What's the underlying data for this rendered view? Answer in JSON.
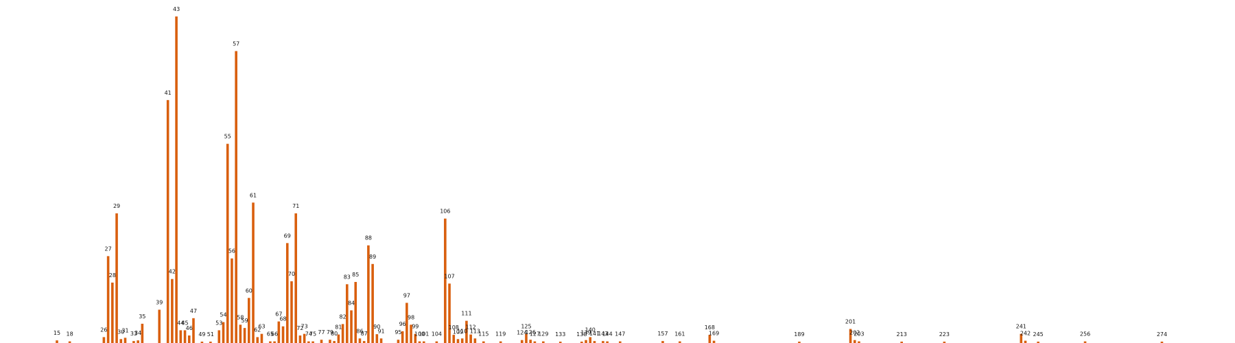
{
  "chart_data": {
    "type": "bar",
    "bar_color": "#d95f0e",
    "grid": false,
    "legend": "none",
    "ylim": [
      0,
      1.0
    ],
    "points": [
      {
        "x": 15,
        "y": 0.008
      },
      {
        "x": 18,
        "y": 0.005
      },
      {
        "x": 26,
        "y": 0.018
      },
      {
        "x": 27,
        "y": 0.266
      },
      {
        "x": 28,
        "y": 0.185
      },
      {
        "x": 29,
        "y": 0.397
      },
      {
        "x": 30,
        "y": 0.012
      },
      {
        "x": 31,
        "y": 0.016
      },
      {
        "x": 33,
        "y": 0.006
      },
      {
        "x": 34,
        "y": 0.008
      },
      {
        "x": 35,
        "y": 0.059
      },
      {
        "x": 39,
        "y": 0.102
      },
      {
        "x": 41,
        "y": 0.744
      },
      {
        "x": 42,
        "y": 0.196
      },
      {
        "x": 43,
        "y": 1.0
      },
      {
        "x": 44,
        "y": 0.039
      },
      {
        "x": 45,
        "y": 0.039
      },
      {
        "x": 46,
        "y": 0.023
      },
      {
        "x": 47,
        "y": 0.076
      },
      {
        "x": 49,
        "y": 0.004
      },
      {
        "x": 51,
        "y": 0.004
      },
      {
        "x": 53,
        "y": 0.039
      },
      {
        "x": 54,
        "y": 0.064
      },
      {
        "x": 55,
        "y": 0.61
      },
      {
        "x": 56,
        "y": 0.259
      },
      {
        "x": 57,
        "y": 0.894
      },
      {
        "x": 58,
        "y": 0.056
      },
      {
        "x": 59,
        "y": 0.046
      },
      {
        "x": 60,
        "y": 0.138
      },
      {
        "x": 61,
        "y": 0.43
      },
      {
        "x": 62,
        "y": 0.018
      },
      {
        "x": 63,
        "y": 0.028
      },
      {
        "x": 65,
        "y": 0.005
      },
      {
        "x": 66,
        "y": 0.005
      },
      {
        "x": 67,
        "y": 0.066
      },
      {
        "x": 68,
        "y": 0.051
      },
      {
        "x": 69,
        "y": 0.306
      },
      {
        "x": 70,
        "y": 0.189
      },
      {
        "x": 71,
        "y": 0.397
      },
      {
        "x": 72,
        "y": 0.023
      },
      {
        "x": 73,
        "y": 0.028
      },
      {
        "x": 74,
        "y": 0.005
      },
      {
        "x": 75,
        "y": 0.005
      },
      {
        "x": 77,
        "y": 0.01
      },
      {
        "x": 79,
        "y": 0.01
      },
      {
        "x": 80,
        "y": 0.006
      },
      {
        "x": 81,
        "y": 0.026
      },
      {
        "x": 82,
        "y": 0.058
      },
      {
        "x": 83,
        "y": 0.18
      },
      {
        "x": 84,
        "y": 0.1
      },
      {
        "x": 85,
        "y": 0.187
      },
      {
        "x": 86,
        "y": 0.014
      },
      {
        "x": 87,
        "y": 0.006
      },
      {
        "x": 88,
        "y": 0.299
      },
      {
        "x": 89,
        "y": 0.242
      },
      {
        "x": 90,
        "y": 0.027
      },
      {
        "x": 91,
        "y": 0.014
      },
      {
        "x": 95,
        "y": 0.01
      },
      {
        "x": 96,
        "y": 0.036
      },
      {
        "x": 97,
        "y": 0.123
      },
      {
        "x": 98,
        "y": 0.056
      },
      {
        "x": 99,
        "y": 0.028
      },
      {
        "x": 100,
        "y": 0.005
      },
      {
        "x": 101,
        "y": 0.005
      },
      {
        "x": 104,
        "y": 0.005
      },
      {
        "x": 106,
        "y": 0.381
      },
      {
        "x": 107,
        "y": 0.182
      },
      {
        "x": 108,
        "y": 0.025
      },
      {
        "x": 109,
        "y": 0.012
      },
      {
        "x": 110,
        "y": 0.014
      },
      {
        "x": 111,
        "y": 0.068
      },
      {
        "x": 112,
        "y": 0.026
      },
      {
        "x": 113,
        "y": 0.014
      },
      {
        "x": 115,
        "y": 0.005
      },
      {
        "x": 119,
        "y": 0.005
      },
      {
        "x": 124,
        "y": 0.009
      },
      {
        "x": 125,
        "y": 0.028
      },
      {
        "x": 126,
        "y": 0.01
      },
      {
        "x": 127,
        "y": 0.005
      },
      {
        "x": 129,
        "y": 0.005
      },
      {
        "x": 133,
        "y": 0.004
      },
      {
        "x": 138,
        "y": 0.004
      },
      {
        "x": 139,
        "y": 0.009
      },
      {
        "x": 140,
        "y": 0.018
      },
      {
        "x": 141,
        "y": 0.006
      },
      {
        "x": 143,
        "y": 0.006
      },
      {
        "x": 144,
        "y": 0.005
      },
      {
        "x": 147,
        "y": 0.005
      },
      {
        "x": 157,
        "y": 0.006
      },
      {
        "x": 161,
        "y": 0.005
      },
      {
        "x": 168,
        "y": 0.025
      },
      {
        "x": 169,
        "y": 0.007
      },
      {
        "x": 189,
        "y": 0.004
      },
      {
        "x": 201,
        "y": 0.043
      },
      {
        "x": 202,
        "y": 0.009
      },
      {
        "x": 203,
        "y": 0.005
      },
      {
        "x": 213,
        "y": 0.004
      },
      {
        "x": 223,
        "y": 0.004
      },
      {
        "x": 241,
        "y": 0.028
      },
      {
        "x": 242,
        "y": 0.007
      },
      {
        "x": 245,
        "y": 0.003
      },
      {
        "x": 256,
        "y": 0.005
      },
      {
        "x": 274,
        "y": 0.003
      }
    ]
  }
}
